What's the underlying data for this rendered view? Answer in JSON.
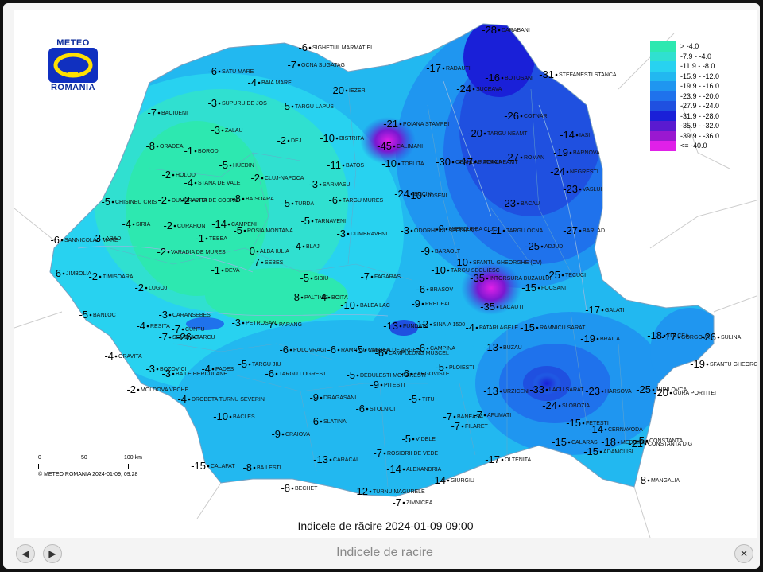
{
  "logo": {
    "top": "METEO",
    "bottom": "ROMANIA"
  },
  "legend": [
    {
      "label": "> -4.0",
      "color": "#2de8b0"
    },
    {
      "label": "-7.9 - -4.0",
      "color": "#30e0d0"
    },
    {
      "label": "-11.9 - -8.0",
      "color": "#28d2f0"
    },
    {
      "label": "-15.9 - -12.0",
      "color": "#22b8f0"
    },
    {
      "label": "-19.9 - -16.0",
      "color": "#1f96f0"
    },
    {
      "label": "-23.9 - -20.0",
      "color": "#1f72ec"
    },
    {
      "label": "-27.9 - -24.0",
      "color": "#1f50e0"
    },
    {
      "label": "-31.9 - -28.0",
      "color": "#1a20d8"
    },
    {
      "label": "-35.9 - -32.0",
      "color": "#5a1ad0"
    },
    {
      "label": "-39.9 - -36.0",
      "color": "#9a18d0"
    },
    {
      "label": "<= -40.0",
      "color": "#e020e8"
    }
  ],
  "scale": {
    "ticks": [
      "0",
      "50",
      "100 km"
    ],
    "copyright": "© METEO ROMANIA 2024-01-09, 09:28"
  },
  "map_caption": "Indicele de răcire 2024-01-09 09:00",
  "bottom_caption": "Indicele de racire",
  "stations": [
    {
      "name": "SIGHETUL MARMATIEI",
      "value": "-6"
    },
    {
      "name": "OCNA SUGATAG",
      "value": "-7"
    },
    {
      "name": "SATU MARE",
      "value": "-6"
    },
    {
      "name": "BAIA MARE",
      "value": "-4"
    },
    {
      "name": "SUPURU DE JOS",
      "value": "-3"
    },
    {
      "name": "TARGU LAPUS",
      "value": "-5"
    },
    {
      "name": "IEZER",
      "value": "-20"
    },
    {
      "name": "BACIUENI",
      "value": "-7"
    },
    {
      "name": "ZALAU",
      "value": "-3"
    },
    {
      "name": "DEJ",
      "value": "-2"
    },
    {
      "name": "BISTRITA",
      "value": "-10"
    },
    {
      "name": "ORADEA",
      "value": "-8"
    },
    {
      "name": "BOROD",
      "value": "-1"
    },
    {
      "name": "HUEDIN",
      "value": "-5"
    },
    {
      "name": "CLUJ-NAPOCA",
      "value": "-2"
    },
    {
      "name": "BATOS",
      "value": "-11"
    },
    {
      "name": "HOLOD",
      "value": "-2"
    },
    {
      "name": "STANA DE VALE",
      "value": "-4"
    },
    {
      "name": "SARMASU",
      "value": "-3"
    },
    {
      "name": "DUMBRAVITA DE CODRU",
      "value": "-2"
    },
    {
      "name": "STEI",
      "value": "-2"
    },
    {
      "name": "CHISINEU CRIS",
      "value": "-5"
    },
    {
      "name": "BAISOARA",
      "value": "-8"
    },
    {
      "name": "TURDA",
      "value": "-5"
    },
    {
      "name": "TARGU MURES",
      "value": "-6"
    },
    {
      "name": "SIRIA",
      "value": "-4"
    },
    {
      "name": "CURAHONT",
      "value": "-2"
    },
    {
      "name": "CAMPENI",
      "value": "-14"
    },
    {
      "name": "ROSIA MONTANA",
      "value": "-5"
    },
    {
      "name": "TARNAVENI",
      "value": "-5"
    },
    {
      "name": "SANNICOLAU MARE",
      "value": "-6"
    },
    {
      "name": "ARAD",
      "value": "-3"
    },
    {
      "name": "TEBEA",
      "value": "-1"
    },
    {
      "name": "VARADIA DE MURES",
      "value": "-2"
    },
    {
      "name": "ALBA IULIA",
      "value": "0"
    },
    {
      "name": "BLAJ",
      "value": "-4"
    },
    {
      "name": "DUMBRAVENI",
      "value": "-3"
    },
    {
      "name": "SEBES",
      "value": "-7"
    },
    {
      "name": "JIMBOLIA",
      "value": "-6"
    },
    {
      "name": "TIMISOARA",
      "value": "-2"
    },
    {
      "name": "DEVA",
      "value": "-1"
    },
    {
      "name": "LUGOJ",
      "value": "-2"
    },
    {
      "name": "SIBIU",
      "value": "-5"
    },
    {
      "name": "FAGARAS",
      "value": "-7"
    },
    {
      "name": "PALTINIS",
      "value": "-8"
    },
    {
      "name": "BOITA",
      "value": "-4"
    },
    {
      "name": "BALEA LAC",
      "value": "-10"
    },
    {
      "name": "BANLOC",
      "value": "-5"
    },
    {
      "name": "CARANSEBES",
      "value": "-3"
    },
    {
      "name": "RESITA",
      "value": "-4"
    },
    {
      "name": "CUNTU",
      "value": "-7"
    },
    {
      "name": "PETROSANI",
      "value": "-3"
    },
    {
      "name": "PARANG",
      "value": "-7"
    },
    {
      "name": "SEMENIC",
      "value": "-7"
    },
    {
      "name": "TARCU",
      "value": "-26"
    },
    {
      "name": "ORAVITA",
      "value": "-4"
    },
    {
      "name": "BOZOVICI",
      "value": "-3"
    },
    {
      "name": "BAILE HERCULANE",
      "value": "-3"
    },
    {
      "name": "PADES",
      "value": "-4"
    },
    {
      "name": "TARGU JIU",
      "value": "-5"
    },
    {
      "name": "POLOVRAGI",
      "value": "-6"
    },
    {
      "name": "MOLDOVA VECHE",
      "value": "-2"
    },
    {
      "name": "TARGU LOGRESTI",
      "value": "-6"
    },
    {
      "name": "DROBETA TURNU SEVERIN",
      "value": "-4"
    },
    {
      "name": "RAMNICU VALCEA",
      "value": "-6"
    },
    {
      "name": "CURTEA DE ARGES",
      "value": "-5"
    },
    {
      "name": "DEDULESTI MORARESTI",
      "value": "-5"
    },
    {
      "name": "FUNDATA",
      "value": "-13"
    },
    {
      "name": "CAMPULUNG MUSCEL",
      "value": "-6"
    },
    {
      "name": "BACLES",
      "value": "-10"
    },
    {
      "name": "DRAGASANI",
      "value": "-9"
    },
    {
      "name": "PITESTI",
      "value": "-9"
    },
    {
      "name": "STOLNICI",
      "value": "-6"
    },
    {
      "name": "SLATINA",
      "value": "-6"
    },
    {
      "name": "CRAIOVA",
      "value": "-9"
    },
    {
      "name": "CALAFAT",
      "value": "-15"
    },
    {
      "name": "BAILESTI",
      "value": "-8"
    },
    {
      "name": "CARACAL",
      "value": "-13"
    },
    {
      "name": "BECHET",
      "value": "-8"
    },
    {
      "name": "ROSIORII DE VEDE",
      "value": "-7"
    },
    {
      "name": "ALEXANDRIA",
      "value": "-14"
    },
    {
      "name": "TURNU MAGURELE",
      "value": "-12"
    },
    {
      "name": "ZIMNICEA",
      "value": "-7"
    },
    {
      "name": "GIURGIU",
      "value": "-14"
    },
    {
      "name": "VIDELE",
      "value": "-5"
    },
    {
      "name": "TITU",
      "value": "-5"
    },
    {
      "name": "TARGOVISTE",
      "value": "-6"
    },
    {
      "name": "PLOIESTI",
      "value": "-5"
    },
    {
      "name": "CAMPINA",
      "value": "-6"
    },
    {
      "name": "SINAIA 1500",
      "value": "-12"
    },
    {
      "name": "PREDEAL",
      "value": "-9"
    },
    {
      "name": "BRASOV",
      "value": "-6"
    },
    {
      "name": "PATARLAGELE",
      "value": "-4"
    },
    {
      "name": "BANEASA",
      "value": "-7"
    },
    {
      "name": "AFUMATI",
      "value": "-7"
    },
    {
      "name": "FILARET",
      "value": "-7"
    },
    {
      "name": "OLTENITA",
      "value": "-17"
    },
    {
      "name": "URZICENI",
      "value": "-13"
    },
    {
      "name": "BUZAU",
      "value": "-13"
    },
    {
      "name": "CALARASI",
      "value": "-15"
    },
    {
      "name": "FETESTI",
      "value": "-15"
    },
    {
      "name": "CERNAVODA",
      "value": "-14"
    },
    {
      "name": "MEDGIDIA",
      "value": "-18"
    },
    {
      "name": "ADAMCLISI",
      "value": "-15"
    },
    {
      "name": "CONSTANTA",
      "value": "-5"
    },
    {
      "name": "CONSTANTA DIG",
      "value": "-21"
    },
    {
      "name": "MANGALIA",
      "value": "-8"
    },
    {
      "name": "LACU SARAT",
      "value": "-33"
    },
    {
      "name": "SLOBOZIA",
      "value": "-24"
    },
    {
      "name": "HARSOVA",
      "value": "-23"
    },
    {
      "name": "JURILOVCA",
      "value": "-25"
    },
    {
      "name": "GURA PORTITEI",
      "value": "-20"
    },
    {
      "name": "TULCEA",
      "value": "-18"
    },
    {
      "name": "GORGOVA",
      "value": "-17"
    },
    {
      "name": "SULINA",
      "value": "-26"
    },
    {
      "name": "SFANTU GHEORGHE",
      "value": "-19"
    },
    {
      "name": "BRAILA",
      "value": "-19"
    },
    {
      "name": "GALATI",
      "value": "-17"
    },
    {
      "name": "RAMNICU SARAT",
      "value": "-15"
    },
    {
      "name": "FOCSANI",
      "value": "-15"
    },
    {
      "name": "TECUCI",
      "value": "-25"
    },
    {
      "name": "BARLAD",
      "value": "-27"
    },
    {
      "name": "ADJUD",
      "value": "-25"
    },
    {
      "name": "INTORSURA BUZAULUI",
      "value": "-35"
    },
    {
      "name": "LACAUTI",
      "value": "-35"
    },
    {
      "name": "TARGU SECUIESC",
      "value": "-10"
    },
    {
      "name": "SFANTU GHEORGHE (CV)",
      "value": "-10"
    },
    {
      "name": "BARAOLT",
      "value": "-9"
    },
    {
      "name": "ODORHEIUL SECUIESC",
      "value": "-3"
    },
    {
      "name": "MIERCUREA CIUC",
      "value": "-9"
    },
    {
      "name": "JOSENI",
      "value": "-10"
    },
    {
      "name": "BUCIN",
      "value": "-24"
    },
    {
      "name": "TARGU OCNA",
      "value": "-11"
    },
    {
      "name": "BACAU",
      "value": "-23"
    },
    {
      "name": "VASLUI",
      "value": "-23"
    },
    {
      "name": "NEGRESTI",
      "value": "-24"
    },
    {
      "name": "BARNOVA",
      "value": "-19"
    },
    {
      "name": "IASI",
      "value": "-14"
    },
    {
      "name": "ROMAN",
      "value": "-27"
    },
    {
      "name": "PIATRA NEAMT",
      "value": "-17"
    },
    {
      "name": "CEAHLAU TOACA",
      "value": "-30"
    },
    {
      "name": "TOPLITA",
      "value": "-10"
    },
    {
      "name": "CALIMANI",
      "value": "-45"
    },
    {
      "name": "POIANA STAMPEI",
      "value": "-21"
    },
    {
      "name": "TARGU NEAMT",
      "value": "-20"
    },
    {
      "name": "COTNARI",
      "value": "-26"
    },
    {
      "name": "SUCEAVA",
      "value": "-24"
    },
    {
      "name": "BOTOSANI",
      "value": "-16"
    },
    {
      "name": "RADAUTI",
      "value": "-17"
    },
    {
      "name": "DARABANI",
      "value": "-28"
    },
    {
      "name": "STEFANESTI STANCA",
      "value": "-31"
    }
  ]
}
